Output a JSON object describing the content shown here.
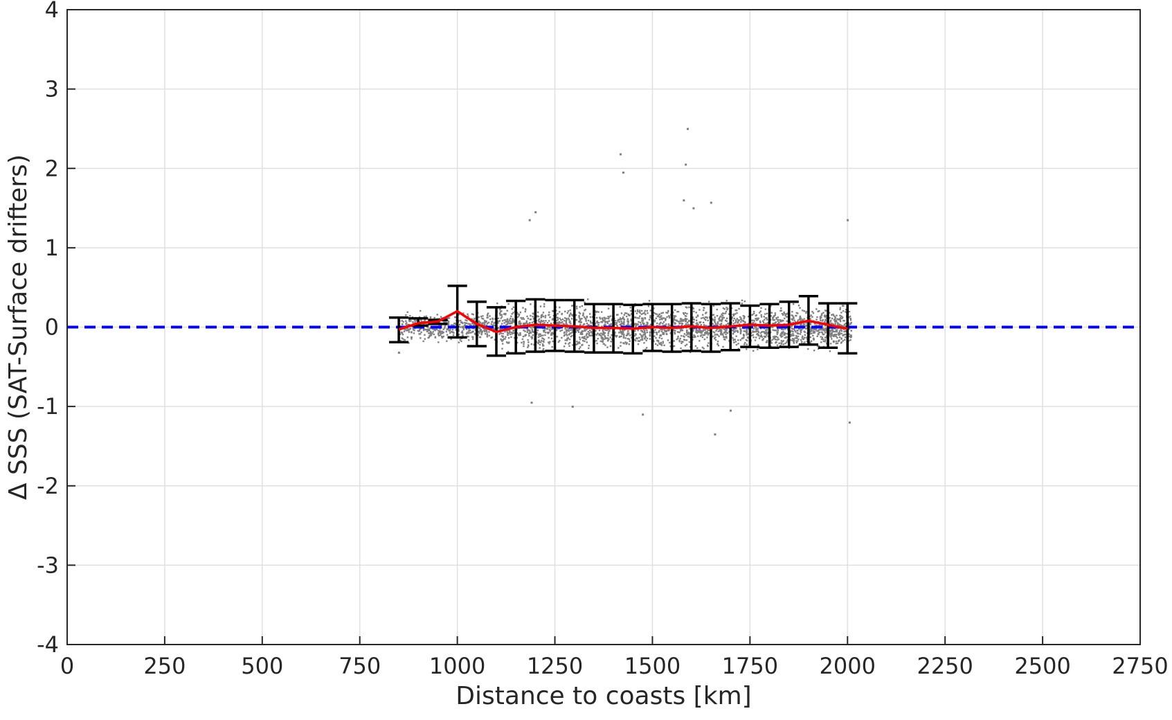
{
  "chart_data": {
    "type": "scatter",
    "title": "",
    "xlabel": "Distance to coasts [km]",
    "ylabel": "Δ SSS (SAT-Surface drifters)",
    "xlim": [
      0,
      2750
    ],
    "ylim": [
      -4,
      4
    ],
    "xticks": [
      "0",
      "250",
      "500",
      "750",
      "1000",
      "1250",
      "1500",
      "1750",
      "2000",
      "2250",
      "2500",
      "2750"
    ],
    "yticks": [
      "-4",
      "-3",
      "-2",
      "-1",
      "0",
      "1",
      "2",
      "3",
      "4"
    ],
    "grid": true,
    "legend": "none",
    "reference_line": {
      "y": 0,
      "color": "#0000ff",
      "style": "dashed"
    },
    "scatter": {
      "color": "#808080",
      "x_range": [
        850,
        2010
      ],
      "dense_band": [
        -0.35,
        0.35
      ],
      "outliers": [
        {
          "x": 1418,
          "y": 2.18
        },
        {
          "x": 1425,
          "y": 1.95
        },
        {
          "x": 1590,
          "y": 2.5
        },
        {
          "x": 1585,
          "y": 2.05
        },
        {
          "x": 1580,
          "y": 1.6
        },
        {
          "x": 1605,
          "y": 1.5
        },
        {
          "x": 1650,
          "y": 1.57
        },
        {
          "x": 1200,
          "y": 1.45
        },
        {
          "x": 1185,
          "y": 1.35
        },
        {
          "x": 2000,
          "y": 1.35
        },
        {
          "x": 2005,
          "y": -1.2
        },
        {
          "x": 1660,
          "y": -1.35
        },
        {
          "x": 1475,
          "y": -1.1
        },
        {
          "x": 1295,
          "y": -1.0
        },
        {
          "x": 1700,
          "y": -1.05
        },
        {
          "x": 1190,
          "y": -0.95
        },
        {
          "x": 850,
          "y": -0.32
        }
      ]
    },
    "bins": {
      "x": [
        850,
        900,
        950,
        1000,
        1050,
        1100,
        1150,
        1200,
        1250,
        1300,
        1350,
        1400,
        1450,
        1500,
        1550,
        1600,
        1650,
        1700,
        1750,
        1800,
        1850,
        1900,
        1950,
        2000
      ],
      "mean": [
        -0.03,
        0.05,
        0.07,
        0.2,
        0.04,
        -0.06,
        0.0,
        0.03,
        0.02,
        0.01,
        -0.01,
        -0.01,
        -0.02,
        0.0,
        -0.01,
        0.01,
        -0.01,
        0.01,
        0.03,
        0.02,
        0.03,
        0.08,
        0.03,
        -0.02
      ],
      "upper": [
        0.12,
        0.11,
        0.09,
        0.52,
        0.32,
        0.25,
        0.33,
        0.35,
        0.34,
        0.34,
        0.29,
        0.29,
        0.28,
        0.29,
        0.29,
        0.3,
        0.29,
        0.3,
        0.27,
        0.29,
        0.32,
        0.39,
        0.3,
        0.3
      ],
      "lower": [
        -0.19,
        0.02,
        0.04,
        -0.13,
        -0.24,
        -0.36,
        -0.33,
        -0.31,
        -0.3,
        -0.31,
        -0.32,
        -0.32,
        -0.33,
        -0.3,
        -0.31,
        -0.3,
        -0.31,
        -0.29,
        -0.25,
        -0.26,
        -0.25,
        -0.22,
        -0.26,
        -0.33
      ]
    },
    "mean_line_color": "#ff0000",
    "errorbar_color": "#000000"
  }
}
